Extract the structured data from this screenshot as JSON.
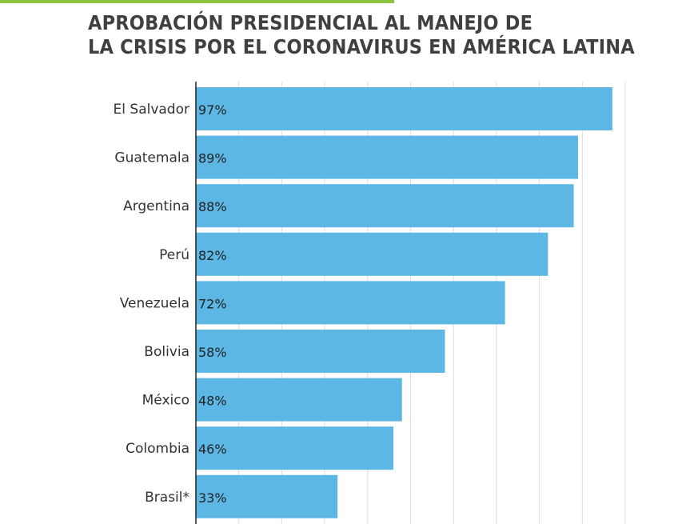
{
  "title_lines": [
    "APROBACIÓN PRESIDENCIAL AL MANEJO DE",
    "LA CRISIS POR EL CORONAVIRUS EN AMÉRICA LATINA"
  ],
  "colors": {
    "accent": "#8dc63f",
    "bar": "#5db7e4",
    "grid": "#dcdcdc",
    "axis": "#222222"
  },
  "chart_data": {
    "type": "bar",
    "orientation": "horizontal",
    "categories": [
      "El Salvador",
      "Guatemala",
      "Argentina",
      "Perú",
      "Venezuela",
      "Bolivia",
      "México",
      "Colombia",
      "Brasil*"
    ],
    "values": [
      97,
      89,
      88,
      82,
      72,
      58,
      48,
      46,
      33
    ],
    "value_labels": [
      "97%",
      "89%",
      "88%",
      "82%",
      "72%",
      "58%",
      "48%",
      "46%",
      "33%"
    ],
    "title": "APROBACIÓN PRESIDENCIAL AL MANEJO DE LA CRISIS POR EL CORONAVIRUS EN AMÉRICA LATINA",
    "xlabel": "",
    "ylabel": "",
    "xlim": [
      0,
      100
    ],
    "grid": true,
    "legend": "none"
  }
}
